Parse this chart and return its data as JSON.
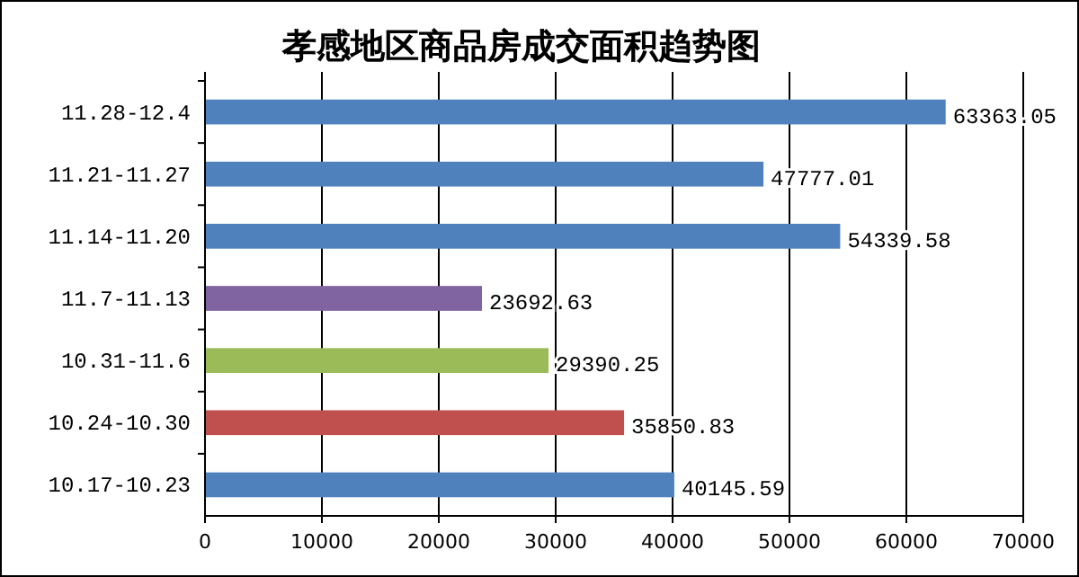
{
  "chart_data": {
    "type": "bar",
    "orientation": "horizontal",
    "title": "孝感地区商品房成交面积趋势图",
    "categories": [
      "11.28-12.4",
      "11.21-11.27",
      "11.14-11.20",
      "11.7-11.13",
      "10.31-11.6",
      "10.24-10.30",
      "10.17-10.23"
    ],
    "values": [
      63363.05,
      47777.01,
      54339.58,
      23692.63,
      29390.25,
      35850.83,
      40145.59
    ],
    "colors": [
      "#4f81bd",
      "#4f81bd",
      "#4f81bd",
      "#8064a2",
      "#9bbb59",
      "#c0504d",
      "#4f81bd"
    ],
    "xlim": [
      0,
      70000
    ],
    "xticks": [
      0,
      10000,
      20000,
      30000,
      40000,
      50000,
      60000,
      70000
    ],
    "grid": "x",
    "data_labels": true
  }
}
